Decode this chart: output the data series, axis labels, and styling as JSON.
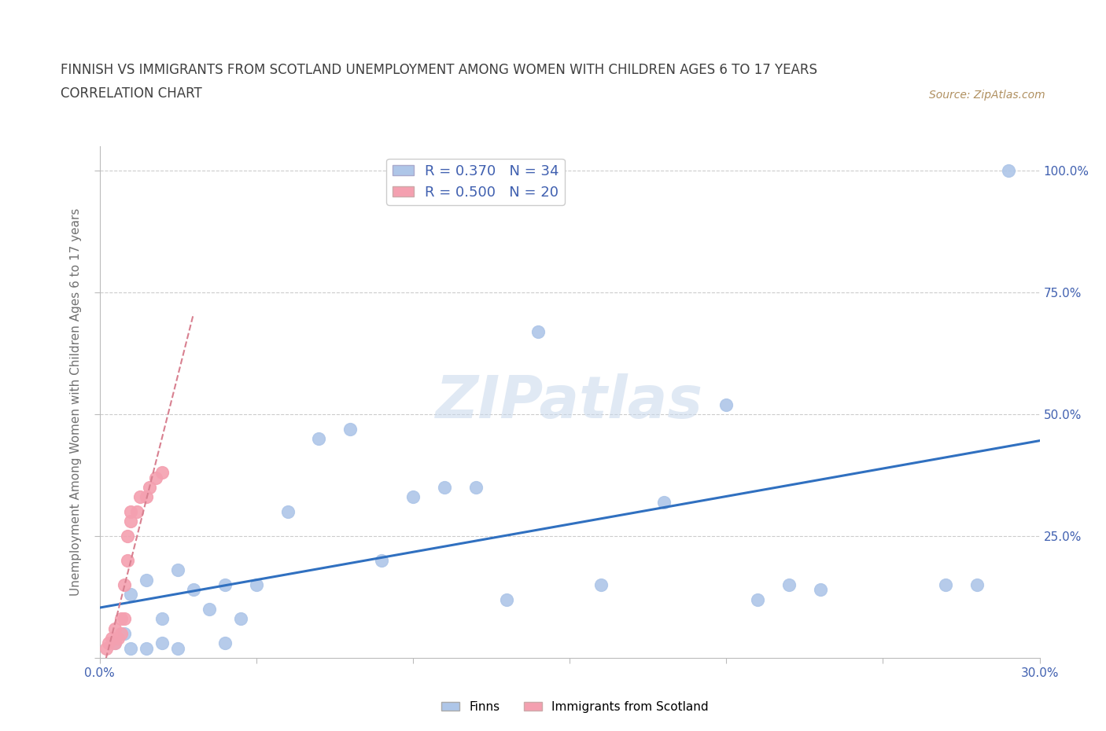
{
  "title_line1": "FINNISH VS IMMIGRANTS FROM SCOTLAND UNEMPLOYMENT AMONG WOMEN WITH CHILDREN AGES 6 TO 17 YEARS",
  "title_line2": "CORRELATION CHART",
  "source": "Source: ZipAtlas.com",
  "ylabel": "Unemployment Among Women with Children Ages 6 to 17 years",
  "xlim": [
    0.0,
    0.3
  ],
  "ylim": [
    0.0,
    1.05
  ],
  "R_finns": 0.37,
  "N_finns": 34,
  "R_scotland": 0.5,
  "N_scotland": 20,
  "finns_color": "#aec6e8",
  "scotland_color": "#f4a0b0",
  "finns_line_color": "#3070c0",
  "scotland_line_color": "#d88090",
  "grid_color": "#cccccc",
  "background_color": "#ffffff",
  "title_color": "#404040",
  "axis_label_color": "#707070",
  "tick_label_color": "#4060b0",
  "source_color": "#b09060",
  "finns_x": [
    0.005,
    0.008,
    0.01,
    0.01,
    0.015,
    0.015,
    0.02,
    0.02,
    0.025,
    0.025,
    0.03,
    0.035,
    0.04,
    0.04,
    0.045,
    0.05,
    0.06,
    0.07,
    0.08,
    0.09,
    0.1,
    0.11,
    0.12,
    0.13,
    0.14,
    0.16,
    0.18,
    0.2,
    0.21,
    0.22,
    0.23,
    0.27,
    0.28,
    0.29
  ],
  "finns_y": [
    0.03,
    0.05,
    0.02,
    0.13,
    0.02,
    0.16,
    0.03,
    0.08,
    0.02,
    0.18,
    0.14,
    0.1,
    0.15,
    0.03,
    0.08,
    0.15,
    0.3,
    0.45,
    0.47,
    0.2,
    0.33,
    0.35,
    0.35,
    0.12,
    0.67,
    0.15,
    0.32,
    0.52,
    0.12,
    0.15,
    0.14,
    0.15,
    0.15,
    1.0
  ],
  "scotland_x": [
    0.002,
    0.003,
    0.004,
    0.005,
    0.005,
    0.006,
    0.007,
    0.007,
    0.008,
    0.008,
    0.009,
    0.009,
    0.01,
    0.01,
    0.012,
    0.013,
    0.015,
    0.016,
    0.018,
    0.02
  ],
  "scotland_y": [
    0.02,
    0.03,
    0.04,
    0.03,
    0.06,
    0.04,
    0.05,
    0.08,
    0.08,
    0.15,
    0.2,
    0.25,
    0.28,
    0.3,
    0.3,
    0.33,
    0.33,
    0.35,
    0.37,
    0.38
  ]
}
